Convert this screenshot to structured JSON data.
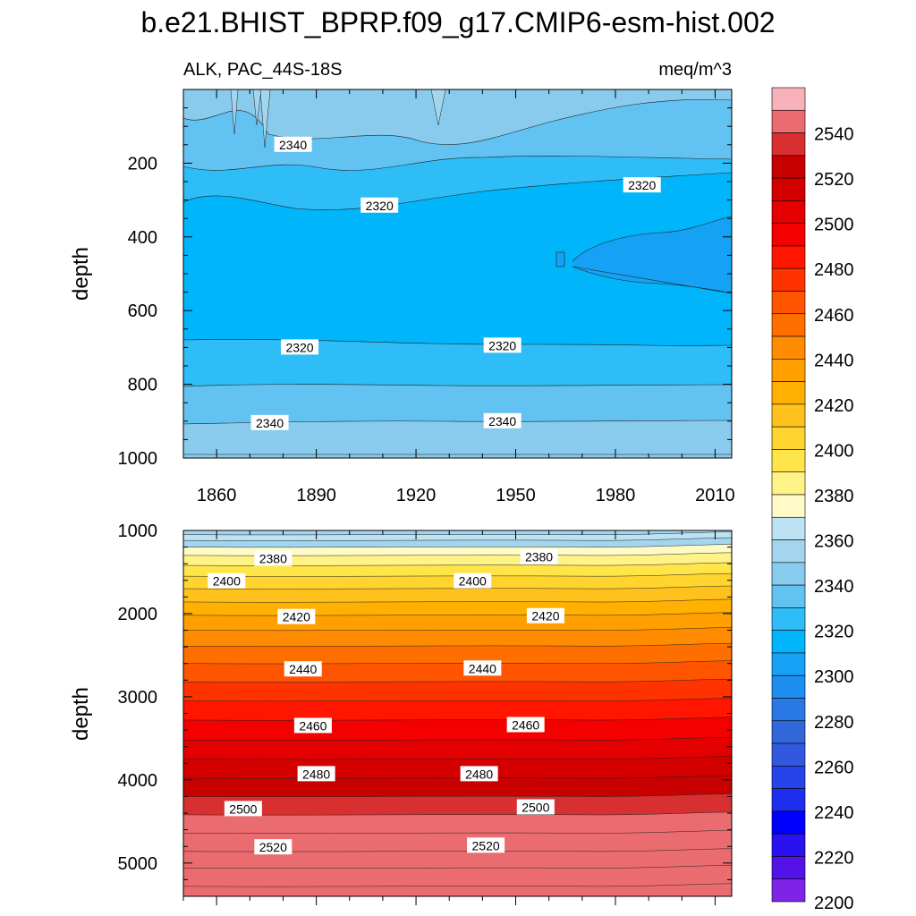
{
  "title": "b.e21.BHIST_BPRP.f09_g17.CMIP6-esm-hist.002",
  "subtitle_left": "ALK, PAC_44S-18S",
  "subtitle_right": "meq/m^3",
  "chart_data": [
    {
      "type": "heatmap",
      "panel": "upper",
      "ylabel": "depth",
      "xlabel": "",
      "xlim": [
        1850,
        2015
      ],
      "ylim": [
        1000,
        0
      ],
      "x_ticks": [
        1860,
        1890,
        1920,
        1950,
        1980,
        2010
      ],
      "y_ticks": [
        200,
        400,
        600,
        800,
        1000
      ],
      "contour_levels": [
        2360,
        2350,
        2340,
        2330,
        2320,
        2310,
        2320,
        2330,
        2340,
        2350
      ],
      "contour_depths_start": [
        0,
        35,
        120,
        180,
        260,
        460,
        680,
        800,
        900,
        1000
      ],
      "contour_depths_end": [
        0,
        40,
        90,
        170,
        240,
        330,
        690,
        800,
        900,
        1000
      ],
      "contour_labels": [
        {
          "text": "2340",
          "year": 1883,
          "depth": 150
        },
        {
          "text": "2320",
          "year": 1909,
          "depth": 315
        },
        {
          "text": "2320",
          "year": 1988,
          "depth": 260
        },
        {
          "text": "2320",
          "year": 1885,
          "depth": 700
        },
        {
          "text": "2320",
          "year": 1946,
          "depth": 695
        },
        {
          "text": "2340",
          "year": 1876,
          "depth": 905
        },
        {
          "text": "2340",
          "year": 1946,
          "depth": 900
        }
      ]
    },
    {
      "type": "heatmap",
      "panel": "lower",
      "ylabel": "depth",
      "xlabel": "",
      "xlim": [
        1850,
        2015
      ],
      "ylim": [
        5400,
        1000
      ],
      "y_ticks": [
        1000,
        2000,
        3000,
        4000,
        5000
      ],
      "contour_levels": [
        2350,
        2360,
        2370,
        2380,
        2390,
        2400,
        2410,
        2420,
        2430,
        2440,
        2450,
        2460,
        2470,
        2480,
        2490,
        2500,
        2510,
        2520,
        2530,
        2540
      ],
      "contour_labels": [
        {
          "text": "2380",
          "year": 1877,
          "depth": 1340
        },
        {
          "text": "2380",
          "year": 1957,
          "depth": 1320
        },
        {
          "text": "2400",
          "year": 1863,
          "depth": 1610
        },
        {
          "text": "2400",
          "year": 1937,
          "depth": 1610
        },
        {
          "text": "2420",
          "year": 1884,
          "depth": 2040
        },
        {
          "text": "2420",
          "year": 1959,
          "depth": 2030
        },
        {
          "text": "2440",
          "year": 1886,
          "depth": 2670
        },
        {
          "text": "2440",
          "year": 1940,
          "depth": 2660
        },
        {
          "text": "2460",
          "year": 1889,
          "depth": 3350
        },
        {
          "text": "2460",
          "year": 1953,
          "depth": 3340
        },
        {
          "text": "2480",
          "year": 1890,
          "depth": 3930
        },
        {
          "text": "2480",
          "year": 1939,
          "depth": 3930
        },
        {
          "text": "2500",
          "year": 1868,
          "depth": 4350
        },
        {
          "text": "2500",
          "year": 1956,
          "depth": 4330
        },
        {
          "text": "2520",
          "year": 1877,
          "depth": 4810
        },
        {
          "text": "2520",
          "year": 1941,
          "depth": 4790
        }
      ]
    }
  ],
  "colorbar": {
    "tick_labels": [
      "2540",
      "2520",
      "2500",
      "2480",
      "2460",
      "2440",
      "2420",
      "2400",
      "2380",
      "2360",
      "2340",
      "2320",
      "2300",
      "2280",
      "2260",
      "2240",
      "2220",
      "2200"
    ],
    "colors": [
      "#f7b1b8",
      "#ea6b70",
      "#d83030",
      "#c80000",
      "#d40000",
      "#e40000",
      "#f50000",
      "#ff1500",
      "#ff3300",
      "#ff5500",
      "#ff6f00",
      "#ff8c00",
      "#ffa000",
      "#ffb000",
      "#ffc21c",
      "#ffd42e",
      "#ffe44a",
      "#fff287",
      "#fffac6",
      "#bde2f3",
      "#a3d6ee",
      "#89cbed",
      "#62c2f2",
      "#2fbdf7",
      "#00b5fa",
      "#16a2f4",
      "#1e8ef1",
      "#2a78e3",
      "#3168d9",
      "#3158dd",
      "#2644eb",
      "#1f2ff0",
      "#0000ff",
      "#2a12f0",
      "#5212e8",
      "#7f24e6"
    ]
  }
}
